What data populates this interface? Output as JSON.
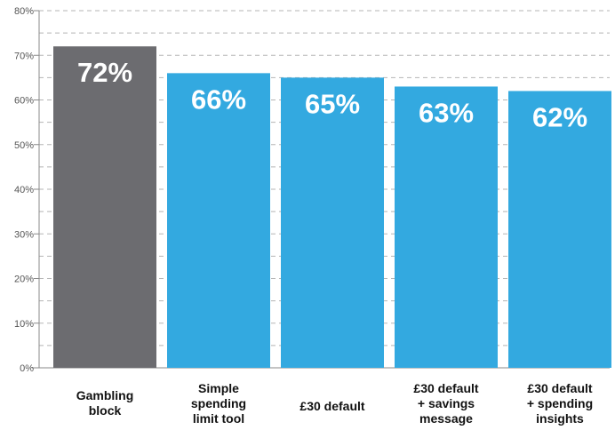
{
  "chart_data": {
    "type": "bar",
    "title": "",
    "xlabel": "",
    "ylabel": "",
    "ylim": [
      0,
      80
    ],
    "yticks": [
      "0%",
      "10%",
      "20%",
      "30%",
      "40%",
      "50%",
      "60%",
      "70%",
      "80%"
    ],
    "grid": true,
    "legend": "none",
    "categories": [
      [
        "Gambling",
        "block"
      ],
      [
        "Simple",
        "spending",
        "limit tool"
      ],
      [
        "£30 default"
      ],
      [
        "£30 default",
        "+ savings",
        "message"
      ],
      [
        "£30 default",
        "+ spending",
        "insights"
      ]
    ],
    "values": [
      72,
      66,
      65,
      63,
      62
    ],
    "value_labels": [
      "72%",
      "66%",
      "65%",
      "63%",
      "62%"
    ],
    "colors": [
      "#6c6c70",
      "#33a9e0",
      "#33a9e0",
      "#33a9e0",
      "#33a9e0"
    ]
  }
}
